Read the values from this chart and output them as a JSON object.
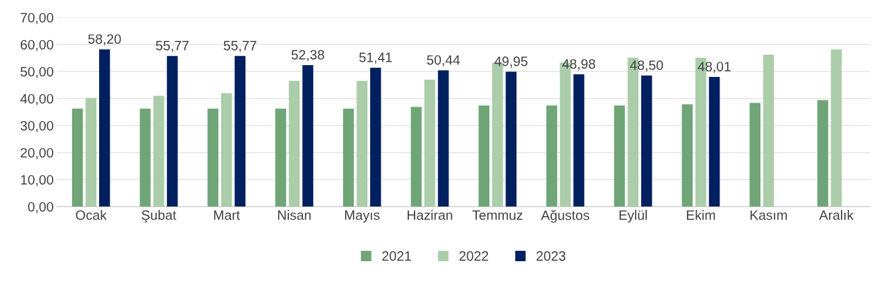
{
  "chart_data": {
    "type": "bar",
    "categories": [
      "Ocak",
      "Şubat",
      "Mart",
      "Nisan",
      "Mayıs",
      "Haziran",
      "Temmuz",
      "Ağustos",
      "Eylül",
      "Ekim",
      "Kasım",
      "Aralık"
    ],
    "series": [
      {
        "name": "2021",
        "color": "#70a577",
        "values": [
          36.3,
          36.3,
          36.3,
          36.3,
          36.3,
          36.9,
          37.4,
          37.4,
          37.4,
          37.9,
          38.4,
          39.4
        ]
      },
      {
        "name": "2022",
        "color": "#abcdaa",
        "values": [
          40.2,
          41.0,
          42.0,
          46.5,
          46.5,
          47.0,
          53.3,
          53.3,
          55.1,
          55.1,
          56.2,
          58.2
        ]
      },
      {
        "name": "2023",
        "color": "#002060",
        "values": [
          58.2,
          55.77,
          55.77,
          52.38,
          51.41,
          50.44,
          49.95,
          48.98,
          48.5,
          48.01,
          null,
          null
        ],
        "value_labels": [
          "58,20",
          "55,77",
          "55,77",
          "52,38",
          "51,41",
          "50,44",
          "49,95",
          "48,98",
          "48,50",
          "48,01",
          null,
          null
        ]
      }
    ],
    "ylim": [
      0,
      70
    ],
    "yticks": [
      {
        "value": 0,
        "label": "0,00"
      },
      {
        "value": 10,
        "label": "10,00"
      },
      {
        "value": 20,
        "label": "20,00"
      },
      {
        "value": 30,
        "label": "30,00"
      },
      {
        "value": 40,
        "label": "40,00"
      },
      {
        "value": 50,
        "label": "50,00"
      },
      {
        "value": 60,
        "label": "60,00"
      },
      {
        "value": 70,
        "label": "70,00"
      }
    ],
    "grid": "y",
    "legend": "bottom"
  }
}
